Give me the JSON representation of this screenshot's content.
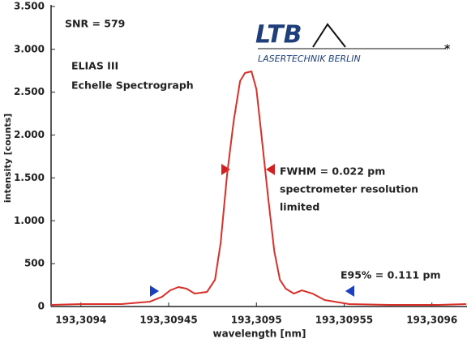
{
  "chart_data": {
    "type": "line",
    "xlabel": "wavelength [nm]",
    "ylabel": "intensity [counts]",
    "annotations": [
      "SNR = 579",
      "ELIAS III",
      "Echelle Spectrograph",
      "FWHM = 0.022 pm",
      "spectrometer resolution",
      "limited",
      "E95% = 0.111 pm"
    ],
    "logo": {
      "title": "LTB",
      "subtitle": "LASERTECHNIK BERLIN"
    },
    "series": [
      {
        "color": "#d9302a",
        "x": [
          193.3093829,
          193.3094,
          193.3094231,
          193.3094394,
          193.3094463,
          193.3094509,
          193.3094556,
          193.3094602,
          193.3094648,
          193.3094718,
          193.3094764,
          193.3094796,
          193.3094833,
          193.309487,
          193.3094907,
          193.3094935,
          193.3094972,
          193.3095,
          193.3095028,
          193.3095065,
          193.3095102,
          193.3095134,
          193.3095167,
          193.3095213,
          193.3095259,
          193.3095319,
          193.3095389,
          193.3095528,
          193.3095759,
          193.3096037,
          193.3096195
        ],
        "values": [
          19,
          28,
          28,
          57,
          114,
          189,
          227,
          208,
          151,
          170,
          312,
          738,
          1542,
          2157,
          2630,
          2724,
          2743,
          2535,
          2015,
          1305,
          643,
          312,
          208,
          151,
          189,
          151,
          76,
          28,
          19,
          19,
          28
        ]
      }
    ],
    "xlim": [
      193.309383,
      193.30962
    ],
    "ylim": [
      0,
      3500
    ],
    "xticks": [
      {
        "value": 193.3094,
        "label": "193,3094"
      },
      {
        "value": 193.30945,
        "label": "193,30945"
      },
      {
        "value": 193.3095,
        "label": "193,3095"
      },
      {
        "value": 193.30955,
        "label": "193,30955"
      },
      {
        "value": 193.3096,
        "label": "193,3096"
      }
    ],
    "yticks": [
      0,
      500,
      {
        "value": 1000,
        "label": "1.000"
      },
      {
        "value": 1500,
        "label": "1.500"
      },
      {
        "value": 2000,
        "label": "2.000"
      },
      {
        "value": 2500,
        "label": "2.500"
      },
      {
        "value": 3000,
        "label": "3.000"
      },
      {
        "value": 3500,
        "label": "3.500"
      }
    ],
    "grid": false
  }
}
